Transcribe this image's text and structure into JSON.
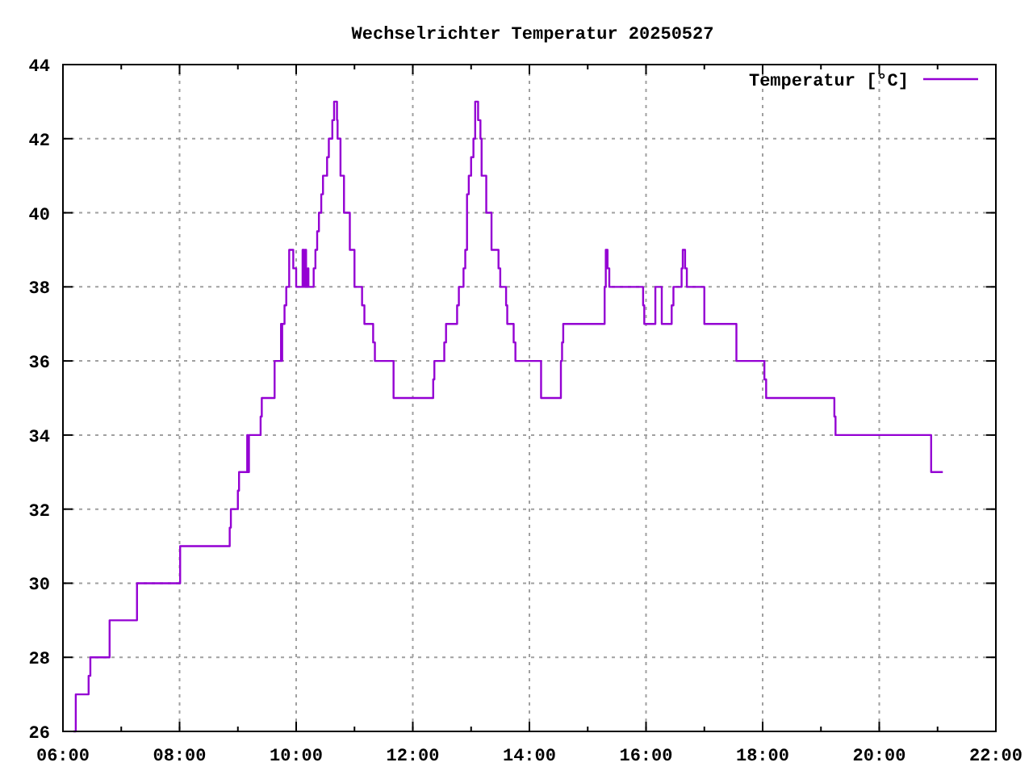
{
  "chart_data": {
    "type": "step",
    "title": "Wechselrichter Temperatur 20250527",
    "xlim": [
      6,
      22
    ],
    "xticks": [
      {
        "value": 6,
        "label": "06:00"
      },
      {
        "value": 7,
        "label": null
      },
      {
        "value": 8,
        "label": "08:00"
      },
      {
        "value": 9,
        "label": null
      },
      {
        "value": 10,
        "label": "10:00"
      },
      {
        "value": 11,
        "label": null
      },
      {
        "value": 12,
        "label": "12:00"
      },
      {
        "value": 13,
        "label": null
      },
      {
        "value": 14,
        "label": "14:00"
      },
      {
        "value": 15,
        "label": null
      },
      {
        "value": 16,
        "label": "16:00"
      },
      {
        "value": 17,
        "label": null
      },
      {
        "value": 18,
        "label": "18:00"
      },
      {
        "value": 19,
        "label": null
      },
      {
        "value": 20,
        "label": "20:00"
      },
      {
        "value": 21,
        "label": null
      },
      {
        "value": 22,
        "label": "22:00"
      }
    ],
    "ylim": [
      26,
      44
    ],
    "yticks": [
      26,
      28,
      30,
      32,
      34,
      36,
      38,
      40,
      42,
      44
    ],
    "grid": true,
    "legend": "top right",
    "series": [
      {
        "name": "Temperatur [°C]",
        "color": "#9400d3",
        "x": [
          6.18,
          6.22,
          6.44,
          6.47,
          6.8,
          7.27,
          8.01,
          8.86,
          8.88,
          9.0,
          9.02,
          9.16,
          9.17,
          9.19,
          9.39,
          9.41,
          9.63,
          9.74,
          9.75,
          9.76,
          9.8,
          9.83,
          9.88,
          9.95,
          10.0,
          10.11,
          10.12,
          10.13,
          10.14,
          10.16,
          10.17,
          10.2,
          10.21,
          10.3,
          10.33,
          10.36,
          10.39,
          10.43,
          10.46,
          10.53,
          10.56,
          10.62,
          10.65,
          10.7,
          10.71,
          10.76,
          10.82,
          10.92,
          11.0,
          11.13,
          11.17,
          11.32,
          11.35,
          11.67,
          12.35,
          12.37,
          12.54,
          12.57,
          12.76,
          12.79,
          12.87,
          12.9,
          12.93,
          12.96,
          13.0,
          13.04,
          13.07,
          13.12,
          13.16,
          13.18,
          13.26,
          13.35,
          13.47,
          13.5,
          13.6,
          13.62,
          13.73,
          13.76,
          14.2,
          14.54,
          14.56,
          14.58,
          15.29,
          15.31,
          15.34,
          15.37,
          15.95,
          15.97,
          16.16,
          16.27,
          16.44,
          16.47,
          16.61,
          16.63,
          16.67,
          16.7,
          17.0,
          17.55,
          18.03,
          18.06,
          19.23,
          19.25,
          20.89,
          21.09
        ],
        "values": [
          26,
          27,
          27.5,
          28,
          29,
          30,
          31,
          31.5,
          32,
          32.5,
          33,
          34,
          33,
          34,
          34.5,
          35,
          36,
          37,
          36,
          37,
          37.5,
          38,
          39,
          38.5,
          38,
          39,
          38,
          39,
          38,
          39,
          38,
          38.5,
          38,
          38.5,
          39,
          39.5,
          40,
          40.5,
          41,
          41.5,
          42,
          42.5,
          43,
          42.5,
          42,
          41,
          40,
          39,
          38,
          37.5,
          37,
          36.5,
          36,
          35,
          35.5,
          36,
          36.5,
          37,
          37.5,
          38,
          38.5,
          39,
          40.5,
          41,
          41.5,
          42,
          43,
          42.5,
          42,
          41,
          40,
          39,
          38.5,
          38,
          37.5,
          37,
          36.5,
          36,
          35,
          36,
          36.5,
          37,
          38,
          39,
          38.5,
          38,
          37.5,
          37,
          38,
          37,
          37.5,
          38,
          38.5,
          39,
          38.5,
          38,
          37,
          36,
          35.5,
          35,
          34.5,
          34,
          33,
          33
        ]
      }
    ]
  }
}
